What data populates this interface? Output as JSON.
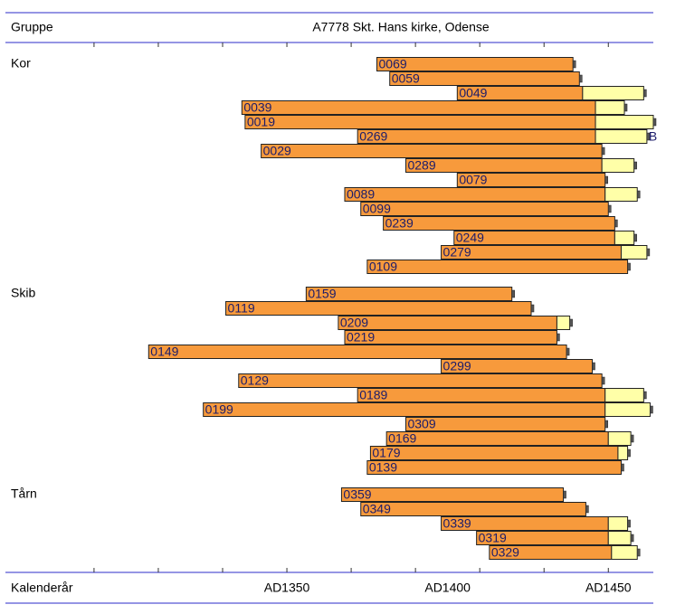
{
  "chart_data": {
    "type": "range-bar",
    "title": "A7778 Skt. Hans kirke, Odense",
    "header_label": "Gruppe",
    "footer_label": "Kalenderår",
    "xlim": [
      1263,
      1464
    ],
    "xticks": [
      {
        "value": 1350,
        "label": "AD1350"
      },
      {
        "value": 1400,
        "label": "AD1400"
      },
      {
        "value": 1450,
        "label": "AD1450"
      }
    ],
    "minor_xticks": [
      1290,
      1310,
      1330,
      1350,
      1370,
      1390,
      1410,
      1430,
      1450
    ],
    "heartwood_color": "#f79a3c",
    "sapwood_color": "#ffffa8",
    "groups": [
      {
        "name": "Kor",
        "bars": [
          {
            "name": "0069",
            "start": 1378,
            "end": 1439,
            "sapwood_end": null
          },
          {
            "name": "0059",
            "start": 1382,
            "end": 1441,
            "sapwood_end": null
          },
          {
            "name": "0049",
            "start": 1403,
            "end": 1442,
            "sapwood_end": 1461
          },
          {
            "name": "0039",
            "start": 1336,
            "end": 1446,
            "sapwood_end": 1455
          },
          {
            "name": "0019",
            "start": 1337,
            "end": 1446,
            "sapwood_end": 1464
          },
          {
            "name": "0269",
            "start": 1372,
            "end": 1446,
            "sapwood_end": 1462,
            "note": "B"
          },
          {
            "name": "0029",
            "start": 1342,
            "end": 1448,
            "sapwood_end": null
          },
          {
            "name": "0289",
            "start": 1387,
            "end": 1448,
            "sapwood_end": 1458
          },
          {
            "name": "0079",
            "start": 1403,
            "end": 1449,
            "sapwood_end": null
          },
          {
            "name": "0089",
            "start": 1368,
            "end": 1449,
            "sapwood_end": 1459
          },
          {
            "name": "0099",
            "start": 1373,
            "end": 1450,
            "sapwood_end": null
          },
          {
            "name": "0239",
            "start": 1380,
            "end": 1452,
            "sapwood_end": null
          },
          {
            "name": "0249",
            "start": 1402,
            "end": 1452,
            "sapwood_end": 1458
          },
          {
            "name": "0279",
            "start": 1398,
            "end": 1454,
            "sapwood_end": 1462
          },
          {
            "name": "0109",
            "start": 1375,
            "end": 1456,
            "sapwood_end": null
          }
        ]
      },
      {
        "name": "Skib",
        "bars": [
          {
            "name": "0159",
            "start": 1356,
            "end": 1420,
            "sapwood_end": null
          },
          {
            "name": "0119",
            "start": 1331,
            "end": 1426,
            "sapwood_end": null
          },
          {
            "name": "0209",
            "start": 1366,
            "end": 1434,
            "sapwood_end": 1438
          },
          {
            "name": "0219",
            "start": 1368,
            "end": 1434,
            "sapwood_end": null
          },
          {
            "name": "0149",
            "start": 1307,
            "end": 1437,
            "sapwood_end": null
          },
          {
            "name": "0299",
            "start": 1398,
            "end": 1445,
            "sapwood_end": null
          },
          {
            "name": "0129",
            "start": 1335,
            "end": 1448,
            "sapwood_end": null
          },
          {
            "name": "0189",
            "start": 1372,
            "end": 1449,
            "sapwood_end": 1461
          },
          {
            "name": "0199",
            "start": 1324,
            "end": 1449,
            "sapwood_end": 1463
          },
          {
            "name": "0309",
            "start": 1387,
            "end": 1449,
            "sapwood_end": null
          },
          {
            "name": "0169",
            "start": 1381,
            "end": 1450,
            "sapwood_end": 1457
          },
          {
            "name": "0179",
            "start": 1376,
            "end": 1453,
            "sapwood_end": 1456
          },
          {
            "name": "0139",
            "start": 1375,
            "end": 1454,
            "sapwood_end": null
          }
        ]
      },
      {
        "name": "Tårn",
        "bars": [
          {
            "name": "0359",
            "start": 1367,
            "end": 1436,
            "sapwood_end": null
          },
          {
            "name": "0349",
            "start": 1373,
            "end": 1443,
            "sapwood_end": null
          },
          {
            "name": "0339",
            "start": 1398,
            "end": 1450,
            "sapwood_end": 1456
          },
          {
            "name": "0319",
            "start": 1409,
            "end": 1450,
            "sapwood_end": 1457
          },
          {
            "name": "0329",
            "start": 1413,
            "end": 1451,
            "sapwood_end": 1459
          }
        ]
      }
    ]
  }
}
